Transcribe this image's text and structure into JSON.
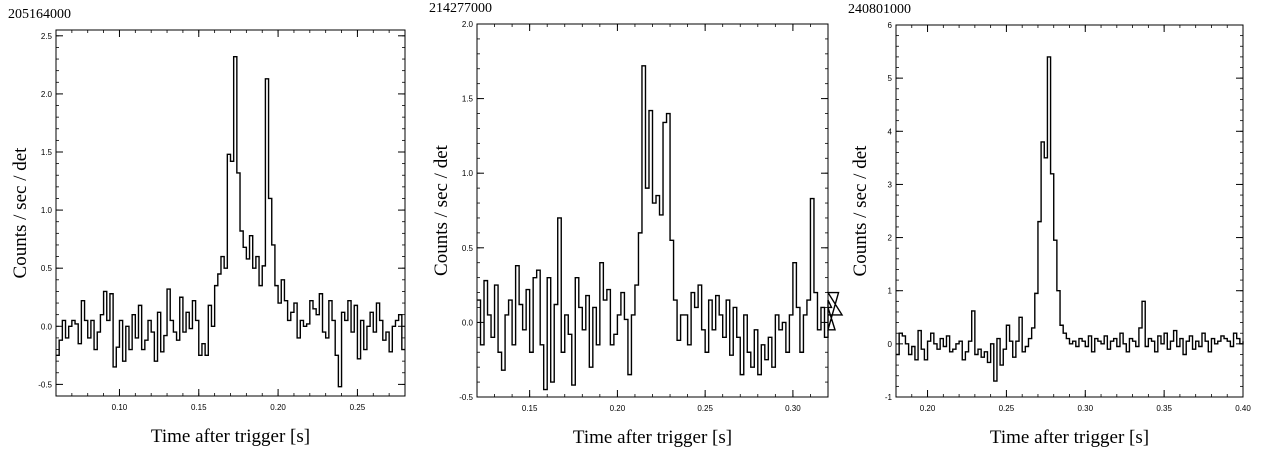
{
  "chart_data": [
    {
      "type": "line",
      "step": true,
      "title": "205164000",
      "xlabel": "Time after trigger [s]",
      "ylabel": "Counts / sec / det",
      "xlim": [
        0.06,
        0.28
      ],
      "ylim": [
        -0.6,
        2.55
      ],
      "xticks": [
        0.1,
        0.15,
        0.2,
        0.25
      ],
      "xtick_labels": [
        "0.10",
        "0.15",
        "0.20",
        "0.25"
      ],
      "yticks": [
        -0.5,
        0.0,
        0.5,
        1.0,
        1.5,
        2.0,
        2.5
      ],
      "ytick_labels": [
        "-0.5",
        "0.0",
        "0.5",
        "1.0",
        "1.5",
        "2.0",
        "2.5"
      ],
      "grid": false,
      "bin_start": 0.06,
      "bin_width": 0.002,
      "values": [
        -0.25,
        -0.12,
        0.05,
        -0.1,
        0.0,
        0.05,
        0.02,
        -0.15,
        0.22,
        0.05,
        -0.1,
        0.05,
        -0.2,
        -0.05,
        0.1,
        0.3,
        0.05,
        0.28,
        -0.35,
        -0.18,
        0.05,
        -0.3,
        0.0,
        -0.2,
        0.1,
        -0.1,
        0.18,
        -0.2,
        -0.12,
        0.05,
        -0.05,
        -0.3,
        0.12,
        -0.22,
        -0.08,
        0.32,
        0.05,
        -0.05,
        -0.12,
        0.25,
        -0.05,
        0.12,
        -0.02,
        0.22,
        0.05,
        -0.25,
        -0.15,
        -0.25,
        0.18,
        0.0,
        0.35,
        0.45,
        0.6,
        0.5,
        1.48,
        1.42,
        2.32,
        1.32,
        0.82,
        0.68,
        0.58,
        0.78,
        0.5,
        0.6,
        0.35,
        0.52,
        2.13,
        1.1,
        0.7,
        0.35,
        0.2,
        0.4,
        0.22,
        0.05,
        0.12,
        0.2,
        -0.1,
        0.05,
        0.0,
        0.02,
        0.22,
        0.15,
        0.1,
        0.28,
        -0.05,
        -0.1,
        0.22,
        0.05,
        -0.25,
        -0.52,
        0.12,
        0.05,
        0.22,
        -0.05,
        0.18,
        -0.28,
        0.05,
        -0.2,
        0.0,
        0.12,
        -0.05,
        0.2,
        0.05,
        -0.12,
        -0.05,
        -0.22,
        0.0,
        0.05,
        0.1,
        -0.2
      ]
    },
    {
      "type": "line",
      "step": true,
      "title": "214277000",
      "xlabel": "Time after trigger [s]",
      "ylabel": "Counts / sec / det",
      "xlim": [
        0.12,
        0.32
      ],
      "ylim": [
        -0.5,
        2.0
      ],
      "xticks": [
        0.15,
        0.2,
        0.25,
        0.3
      ],
      "xtick_labels": [
        "0.15",
        "0.20",
        "0.25",
        "0.30"
      ],
      "yticks": [
        -0.5,
        0.0,
        0.5,
        1.0,
        1.5,
        2.0
      ],
      "ytick_labels": [
        "-0.5",
        "0.0",
        "0.5",
        "1.0",
        "1.5",
        "2.0"
      ],
      "grid": false,
      "bin_start": 0.12,
      "bin_width": 0.002,
      "values": [
        0.15,
        -0.15,
        0.28,
        0.05,
        -0.1,
        0.25,
        -0.2,
        -0.32,
        0.05,
        0.15,
        -0.15,
        0.38,
        0.12,
        -0.05,
        0.22,
        -0.2,
        0.3,
        0.35,
        -0.15,
        -0.45,
        0.3,
        -0.4,
        0.12,
        0.7,
        -0.2,
        0.05,
        -0.08,
        -0.42,
        0.3,
        0.1,
        -0.05,
        0.18,
        -0.3,
        0.1,
        -0.15,
        0.4,
        0.15,
        0.22,
        -0.15,
        -0.08,
        0.05,
        0.2,
        0.02,
        -0.35,
        0.05,
        0.25,
        0.6,
        1.72,
        0.9,
        1.42,
        0.8,
        0.85,
        0.72,
        1.34,
        1.4,
        0.55,
        0.15,
        -0.12,
        0.05,
        0.05,
        -0.15,
        0.2,
        0.1,
        0.25,
        -0.05,
        -0.2,
        0.15,
        -0.05,
        0.18,
        0.05,
        -0.1,
        0.15,
        -0.22,
        0.1,
        -0.1,
        -0.35,
        0.05,
        -0.2,
        -0.3,
        -0.05,
        -0.35,
        -0.15,
        -0.25,
        -0.1,
        -0.3,
        0.05,
        -0.05,
        0.0,
        -0.2,
        0.05,
        0.4,
        0.1,
        -0.2,
        0.05,
        0.15,
        0.83,
        0.2,
        -0.05,
        0.1,
        -0.1,
        0.15,
        0.1,
        -0.05,
        0.2,
        0.05
      ]
    },
    {
      "type": "line",
      "step": true,
      "title": "240801000",
      "xlabel": "Time after trigger [s]",
      "ylabel": "Counts / sec / det",
      "xlim": [
        0.18,
        0.4
      ],
      "ylim": [
        -1.0,
        6.0
      ],
      "xticks": [
        0.2,
        0.25,
        0.3,
        0.35,
        0.4
      ],
      "xtick_labels": [
        "0.20",
        "0.25",
        "0.30",
        "0.35",
        "0.40"
      ],
      "yticks": [
        -1,
        0,
        1,
        2,
        3,
        4,
        5,
        6
      ],
      "ytick_labels": [
        "-1",
        "0",
        "1",
        "2",
        "3",
        "4",
        "5",
        "6"
      ],
      "grid": false,
      "bin_start": 0.18,
      "bin_width": 0.002,
      "values": [
        -0.2,
        0.2,
        0.15,
        0.0,
        -0.2,
        -0.05,
        -0.3,
        0.25,
        -0.1,
        -0.3,
        0.05,
        0.2,
        0.0,
        -0.1,
        0.1,
        -0.05,
        0.15,
        -0.15,
        -0.1,
        0.0,
        0.05,
        -0.3,
        -0.15,
        0.05,
        0.62,
        -0.2,
        -0.1,
        -0.25,
        -0.15,
        -0.35,
        0.0,
        -0.7,
        0.1,
        -0.4,
        -0.1,
        0.35,
        0.05,
        -0.25,
        0.05,
        0.5,
        -0.15,
        -0.05,
        0.1,
        0.3,
        0.95,
        2.3,
        3.8,
        3.5,
        5.4,
        3.2,
        1.95,
        1.0,
        0.35,
        0.2,
        0.1,
        0.0,
        0.05,
        -0.05,
        0.1,
        0.05,
        -0.05,
        0.15,
        -0.15,
        0.1,
        0.05,
        0.0,
        0.15,
        -0.1,
        0.05,
        0.1,
        -0.05,
        0.2,
        0.0,
        -0.15,
        0.1,
        0.05,
        -0.05,
        0.3,
        0.8,
        -0.05,
        0.1,
        0.05,
        -0.15,
        0.15,
        0.0,
        0.2,
        -0.1,
        0.05,
        0.25,
        -0.05,
        0.1,
        -0.2,
        0.05,
        0.15,
        -0.1,
        0.05,
        -0.05,
        0.2,
        0.05,
        -0.15,
        0.1,
        0.0,
        0.05,
        0.15,
        0.1,
        0.05,
        -0.05,
        0.2,
        0.1,
        0.0,
        0.05
      ]
    }
  ]
}
